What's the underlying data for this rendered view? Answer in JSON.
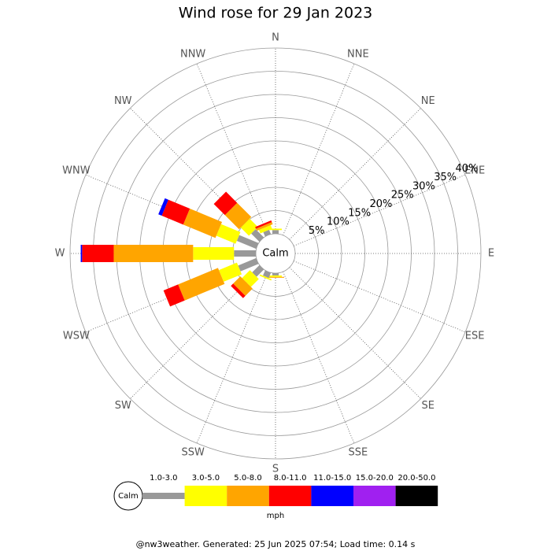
{
  "chart_data": {
    "type": "windrose",
    "title": "Wind rose for 29 Jan 2023",
    "directions": [
      "N",
      "NNE",
      "NE",
      "ENE",
      "E",
      "ESE",
      "SE",
      "SSE",
      "S",
      "SSW",
      "SW",
      "WSW",
      "W",
      "WNW",
      "NW",
      "NNW"
    ],
    "rlim": [
      0,
      40
    ],
    "rticks": [
      {
        "value": 5,
        "label": "5%"
      },
      {
        "value": 10,
        "label": "10%"
      },
      {
        "value": 15,
        "label": "15%"
      },
      {
        "value": 20,
        "label": "20%"
      },
      {
        "value": 25,
        "label": "25%"
      },
      {
        "value": 30,
        "label": "30%"
      },
      {
        "value": 35,
        "label": "35%"
      },
      {
        "value": 40,
        "label": "40%"
      }
    ],
    "calm_label": "Calm",
    "unit": "mph",
    "series": [
      {
        "name": "1.0-3.0",
        "color": "#999999",
        "values": [
          0.8,
          0,
          0,
          0,
          0,
          0,
          0,
          0,
          0.5,
          1.2,
          2.2,
          4.2,
          4.7,
          4.5,
          2.5,
          1
        ]
      },
      {
        "name": "3.0-5.0",
        "color": "#ffff00",
        "values": [
          0.3,
          0,
          0,
          0,
          0,
          0,
          0,
          0,
          0.3,
          0.3,
          2.4,
          4.2,
          8.8,
          4.5,
          2.5,
          0.8
        ]
      },
      {
        "name": "5.0-8.0",
        "color": "#ffa500",
        "values": [
          0,
          0,
          0,
          0,
          0,
          0,
          0,
          0,
          0.2,
          0,
          2.2,
          9.3,
          17.1,
          7.5,
          4.3,
          0.5
        ]
      },
      {
        "name": "8.0-11.0",
        "color": "#ff0000",
        "values": [
          0,
          0,
          0,
          0,
          0,
          0,
          0,
          0,
          0,
          0,
          0.7,
          3.4,
          6.8,
          5,
          3.4,
          0.4
        ]
      },
      {
        "name": "11.0-15.0",
        "color": "#0000ff",
        "values": [
          0,
          0,
          0,
          0,
          0,
          0,
          0,
          0,
          0,
          0,
          0,
          0,
          0.3,
          0.8,
          0,
          0
        ]
      },
      {
        "name": "15.0-20.0",
        "color": "#a020f0",
        "values": [
          0,
          0,
          0,
          0,
          0,
          0,
          0,
          0,
          0,
          0,
          0,
          0,
          0,
          0,
          0,
          0
        ]
      },
      {
        "name": "20.0-50.0",
        "color": "#000000",
        "values": [
          0,
          0,
          0,
          0,
          0,
          0,
          0,
          0,
          0,
          0,
          0,
          0,
          0,
          0,
          0,
          0
        ]
      }
    ],
    "footer": "@nw3weather. Generated: 25 Jun 2025 07:54; Load time: 0.14 s"
  }
}
